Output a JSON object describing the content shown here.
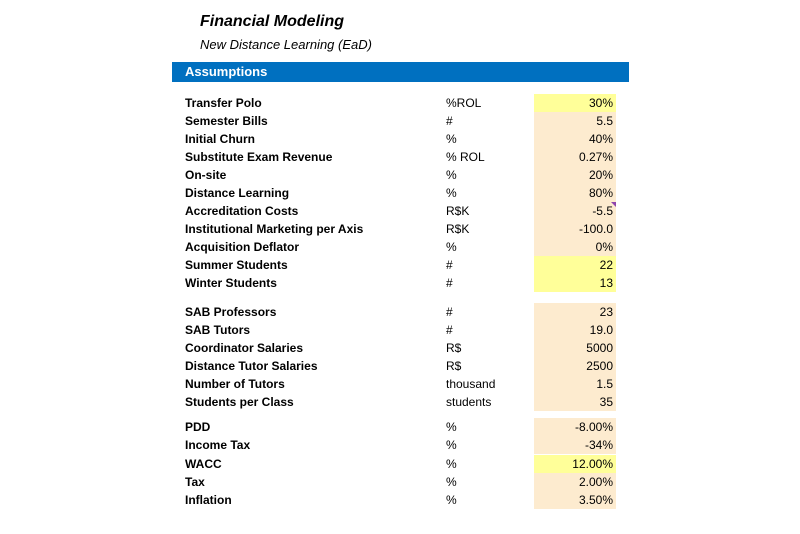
{
  "title": "Financial Modeling",
  "subtitle": "New Distance Learning (EaD)",
  "section": "Assumptions",
  "rows": [
    {
      "label": "Transfer Polo",
      "unit": "%ROL",
      "value": "30%",
      "highlight": true
    },
    {
      "label": "Semester Bills",
      "unit": "#",
      "value": "5.5",
      "highlight": false
    },
    {
      "label": "Initial Churn",
      "unit": "%",
      "value": "40%",
      "highlight": false
    },
    {
      "label": "Substitute Exam Revenue",
      "unit": "% ROL",
      "value": "0.27%",
      "highlight": false
    },
    {
      "label": "On-site",
      "unit": "%",
      "value": "20%",
      "highlight": false
    },
    {
      "label": "Distance Learning",
      "unit": "%",
      "value": "80%",
      "highlight": false
    },
    {
      "label": "Accreditation Costs",
      "unit": "R$K",
      "value": "-5.5",
      "highlight": false,
      "comment": true
    },
    {
      "label": "Institutional Marketing per Axis",
      "unit": "R$K",
      "value": "-100.0",
      "highlight": false
    },
    {
      "label": "Acquisition Deflator",
      "unit": "%",
      "value": "0%",
      "highlight": false
    },
    {
      "label": "Summer Students",
      "unit": "#",
      "value": "22",
      "highlight": true
    },
    {
      "label": "Winter Students",
      "unit": "#",
      "value": "13",
      "highlight": true
    },
    {
      "label": "SAB Professors",
      "unit": "#",
      "value": "23",
      "highlight": false
    },
    {
      "label": "SAB Tutors",
      "unit": "#",
      "value": "19.0",
      "highlight": false
    },
    {
      "label": "Coordinator Salaries",
      "unit": "R$",
      "value": "5000",
      "highlight": false
    },
    {
      "label": "Distance Tutor Salaries",
      "unit": "R$",
      "value": "2500",
      "highlight": false
    },
    {
      "label": "Number of Tutors",
      "unit": "thousand",
      "value": "1.5",
      "highlight": false
    },
    {
      "label": "Students per Class",
      "unit": "students",
      "value": "35",
      "highlight": false
    },
    {
      "label": "PDD",
      "unit": "%",
      "value": "-8.00%",
      "highlight": false
    },
    {
      "label": "Income Tax",
      "unit": "%",
      "value": "-34%",
      "highlight": false
    },
    {
      "label": "WACC",
      "unit": "%",
      "value": "12.00%",
      "highlight": true
    },
    {
      "label": "Tax",
      "unit": "%",
      "value": "2.00%",
      "highlight": false
    },
    {
      "label": "Inflation",
      "unit": "%",
      "value": "3.50%",
      "highlight": false
    }
  ],
  "colors": {
    "header_bg": "#0070c0",
    "input_cell": "#fdebcf",
    "highlight_cell": "#ffff99",
    "comment_marker": "#8e44ad"
  }
}
